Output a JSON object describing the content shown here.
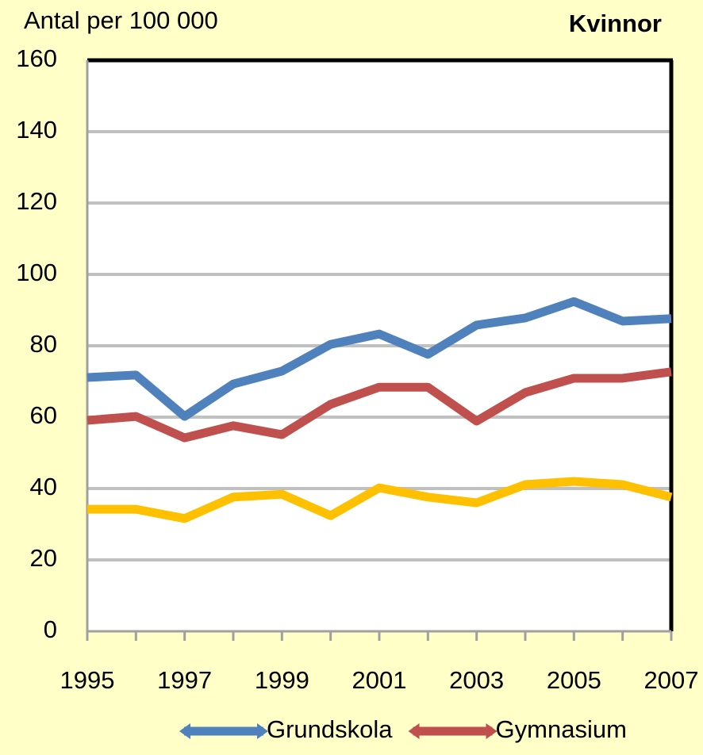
{
  "chart_data": {
    "type": "line",
    "title": "Kvinnor",
    "y_label": "Antal per 100 000",
    "x": [
      1995,
      1996,
      1997,
      1998,
      1999,
      2000,
      2001,
      2002,
      2003,
      2004,
      2005,
      2006,
      2007
    ],
    "xlim": [
      1995,
      2007
    ],
    "xticks": [
      1995,
      1997,
      1999,
      2001,
      2003,
      2005,
      2007
    ],
    "ylim": [
      0,
      160
    ],
    "yticks": [
      0,
      20,
      40,
      60,
      80,
      100,
      120,
      140,
      160
    ],
    "grid": true,
    "legend": "bottom",
    "series": [
      {
        "name": "Grundskola",
        "color": "#4f81bd",
        "values": [
          71.1,
          71.8,
          60.2,
          69.3,
          72.9,
          80.4,
          83.3,
          77.6,
          85.8,
          87.8,
          92.4,
          86.9,
          87.6
        ]
      },
      {
        "name": "Gymnasium",
        "color": "#c0504d",
        "values": [
          59.1,
          60.2,
          54.2,
          57.6,
          55.1,
          63.6,
          68.4,
          68.4,
          58.9,
          66.9,
          70.9,
          70.9,
          72.7
        ]
      },
      {
        "color": "#ffc000",
        "values": [
          34.2,
          34.2,
          31.6,
          37.6,
          38.4,
          32.4,
          40.2,
          37.6,
          36.0,
          41.1,
          42.0,
          41.1,
          37.6
        ]
      }
    ]
  }
}
